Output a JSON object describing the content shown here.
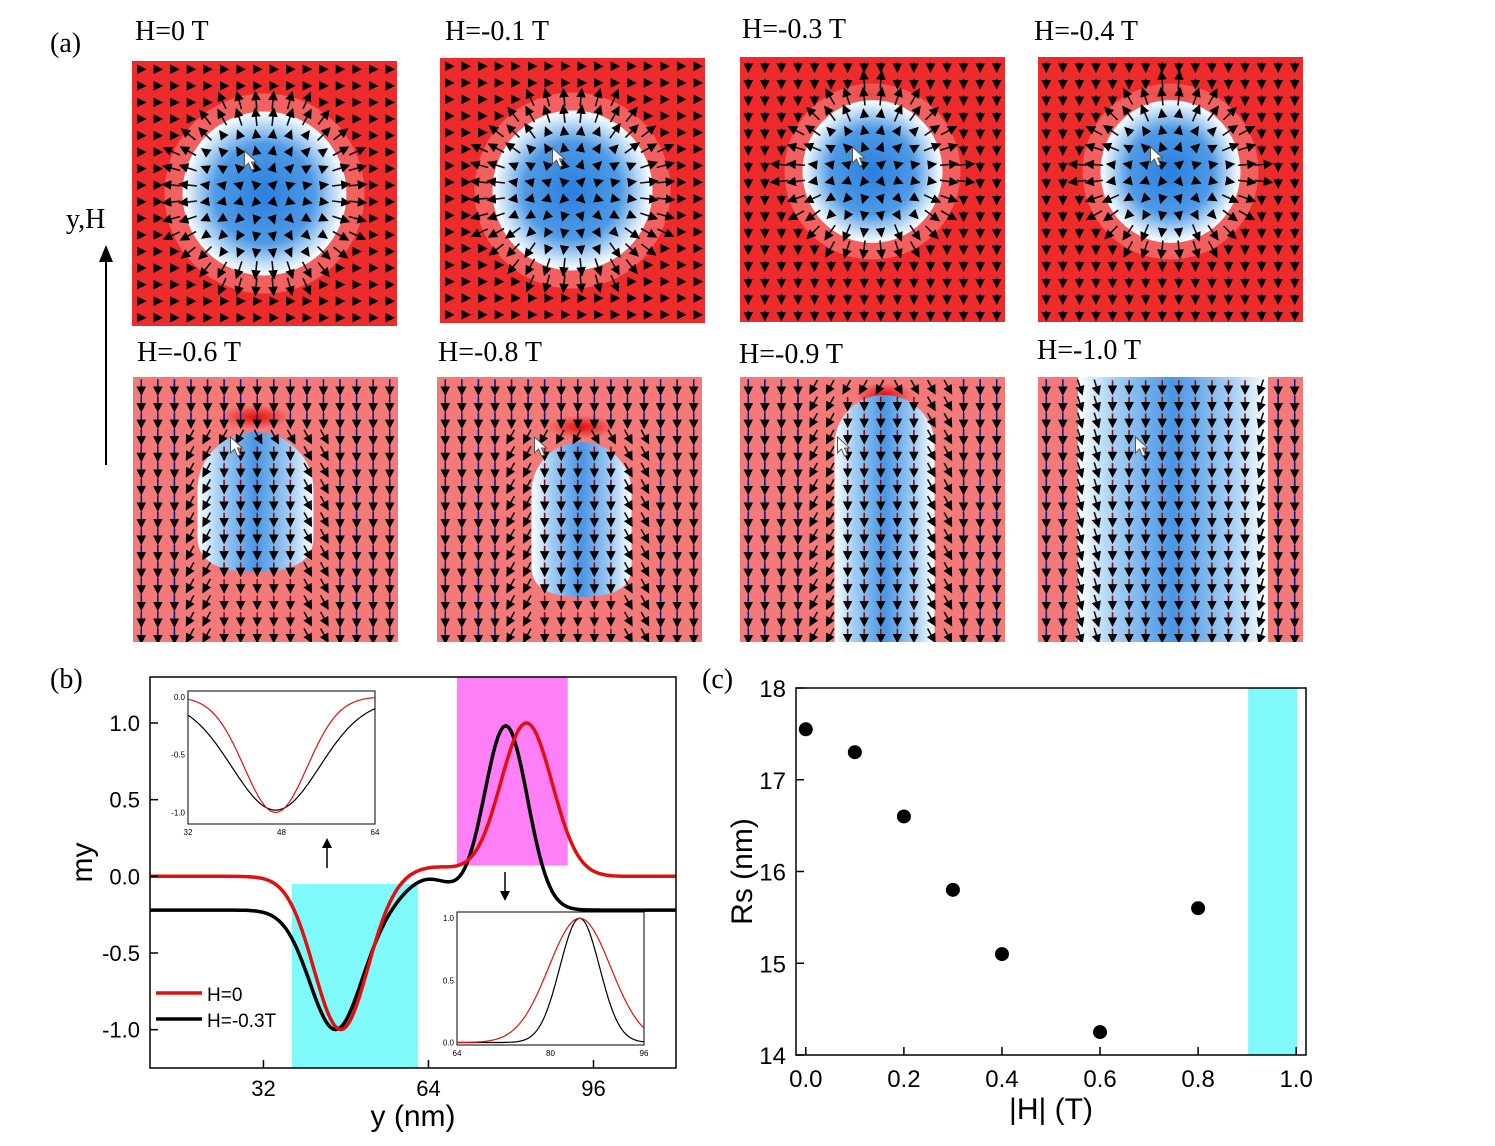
{
  "panel_labels": {
    "a": "(a)",
    "b": "(b)",
    "c": "(c)"
  },
  "axis_label_side": "y,H",
  "snapshots": [
    {
      "title": "H=0 T",
      "shape": "circle"
    },
    {
      "title": "H=-0.1 T",
      "shape": "circle"
    },
    {
      "title": "H=-0.3 T",
      "shape": "circle"
    },
    {
      "title": "H=-0.4 T",
      "shape": "circle"
    },
    {
      "title": "H=-0.6 T",
      "shape": "drop"
    },
    {
      "title": "H=-0.8 T",
      "shape": "drop"
    },
    {
      "title": "H=-0.9 T",
      "shape": "strip"
    },
    {
      "title": "H=-1.0 T",
      "shape": "full-strip"
    }
  ],
  "colors": {
    "background_red": "#ee2b2b",
    "light_red": "#f47a7a",
    "skyrmion_blue": "#3d8ee0",
    "highlight_cyan": "#7ff9fa",
    "highlight_magenta": "#ff7ff6",
    "series_red": "#e01010",
    "series_black": "#000000"
  },
  "chart_data": [
    {
      "id": "b",
      "type": "line",
      "xlabel": "y (nm)",
      "ylabel": "my",
      "xlim": [
        10,
        112
      ],
      "ylim": [
        -1.25,
        1.3
      ],
      "xticks": [
        "32",
        "64",
        "96"
      ],
      "yticks": [
        "1.0",
        "0.5",
        "0.0",
        "-0.5",
        "-1.0"
      ],
      "series": [
        {
          "name": "H=0",
          "color": "#e01010"
        },
        {
          "name": "H=-0.3T",
          "color": "#000000"
        }
      ],
      "insets": [
        {
          "xticks": [
            "32",
            "48",
            "64"
          ],
          "yticks": [
            "0.0",
            "-0.5",
            "-1.0"
          ]
        },
        {
          "xticks": [
            "64",
            "80",
            "96"
          ],
          "yticks": [
            "1.0",
            "0.5",
            "0.0"
          ]
        }
      ]
    },
    {
      "id": "c",
      "type": "scatter",
      "xlabel": "|H| (T)",
      "ylabel": "Rs (nm)",
      "xlim": [
        -0.02,
        1.02
      ],
      "ylim": [
        14,
        18
      ],
      "xticks": [
        "0.0",
        "0.2",
        "0.4",
        "0.6",
        "0.8",
        "1.0"
      ],
      "yticks": [
        "14",
        "15",
        "16",
        "17",
        "18"
      ],
      "x": [
        0.0,
        0.1,
        0.2,
        0.3,
        0.4,
        0.6,
        0.8
      ],
      "y": [
        17.55,
        17.3,
        16.6,
        15.8,
        15.1,
        14.25,
        15.6
      ],
      "shaded_range": [
        0.9,
        1.0
      ]
    }
  ]
}
